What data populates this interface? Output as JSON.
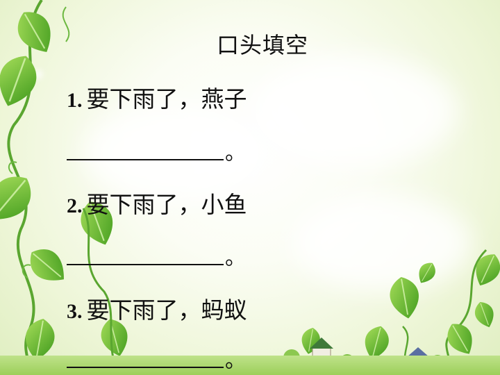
{
  "title": "口头填空",
  "questions": [
    {
      "number": "1.",
      "text": "要下雨了，燕子",
      "ending": "。"
    },
    {
      "number": "2.",
      "text": "要下雨了，小鱼",
      "ending": "。"
    },
    {
      "number": "3.",
      "text": "要下雨了，蚂蚁",
      "ending": "。"
    }
  ],
  "colors": {
    "leaf": "#5cb82a",
    "leaf_dark": "#3f8f1a",
    "text": "#111111"
  }
}
